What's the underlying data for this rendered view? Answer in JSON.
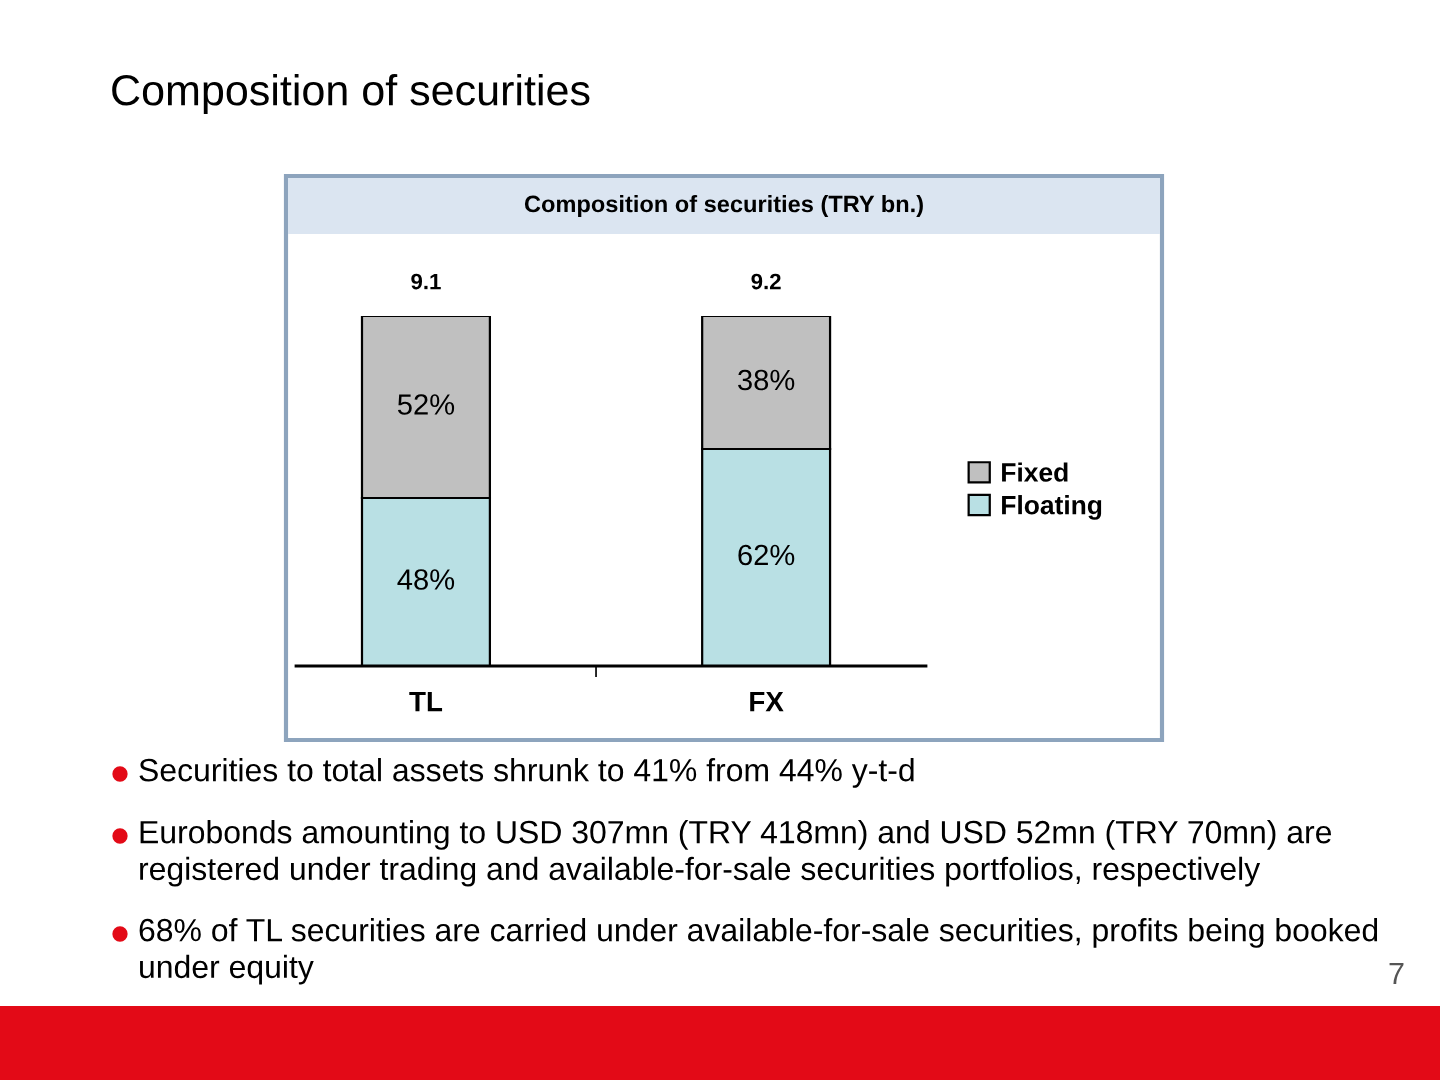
{
  "chart_data": {
    "type": "bar",
    "title": "Composition of securities",
    "subtitle": "Composition of securities (TRY bn.)",
    "categories": [
      "TL",
      "FX"
    ],
    "stacked": true,
    "series": [
      {
        "name": "Floating",
        "color": "#b9e0e4",
        "values": [
          48,
          62
        ],
        "value_labels": [
          "48%",
          "62%"
        ]
      },
      {
        "name": "Fixed",
        "color": "#c0c0c0",
        "values": [
          52,
          38
        ],
        "value_labels": [
          "52%",
          "38%"
        ]
      }
    ],
    "legend": "right",
    "tick_labels": "x",
    "annotations": [
      {
        "text": "9.1",
        "x": "TL",
        "y": 100
      },
      {
        "text": "9.2",
        "x": "FX",
        "y": 100
      },
      "Securities to total assets shrunk to 41% from 44% y-t-d",
      "Eurobonds amounting to USD 307mn (TRY 418mn) and USD 52mn (TRY 70mn) are registered under trading and available-for-sale securities portfolios, respectively",
      "68% of TL securities are carried under available-for-sale securities, profits being booked under equity",
      "7"
    ]
  }
}
